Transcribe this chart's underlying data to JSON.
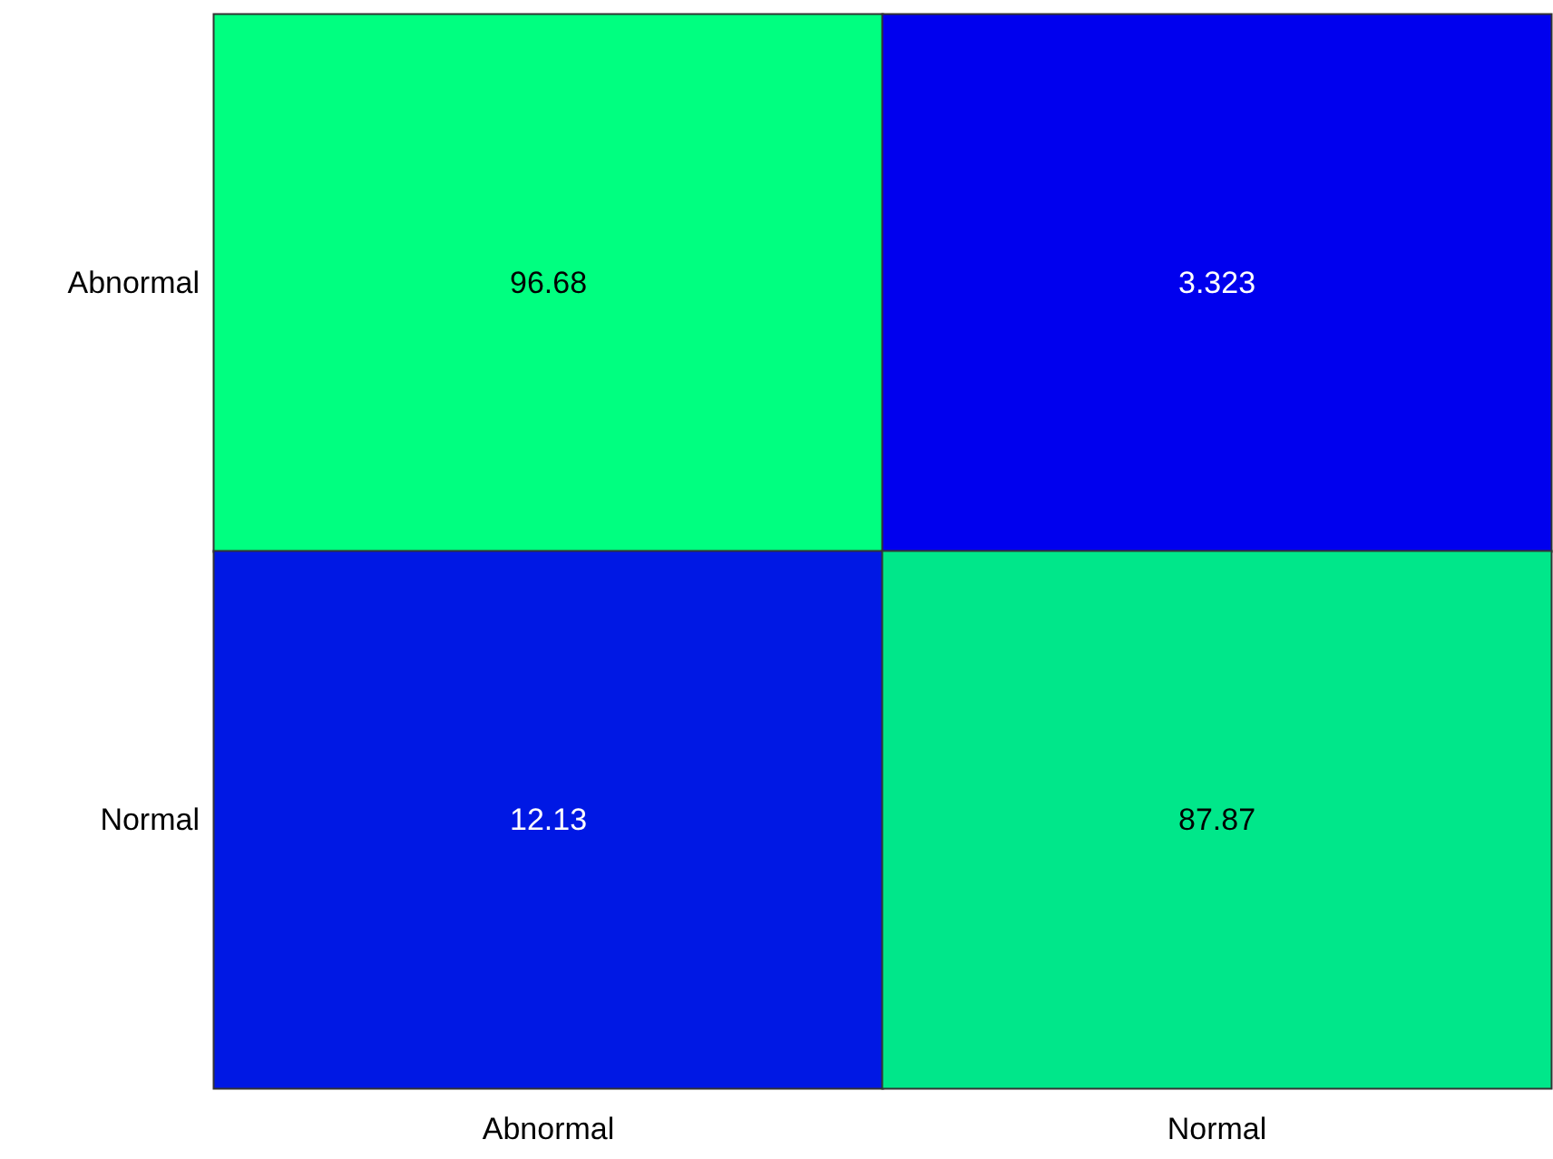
{
  "chart_data": {
    "type": "heatmap",
    "categories": [
      "Abnormal",
      "Normal"
    ],
    "y_categories": [
      "Abnormal",
      "Normal"
    ],
    "cells": [
      [
        96.68,
        3.323
      ],
      [
        12.13,
        87.87
      ]
    ],
    "data_labels": true
  }
}
